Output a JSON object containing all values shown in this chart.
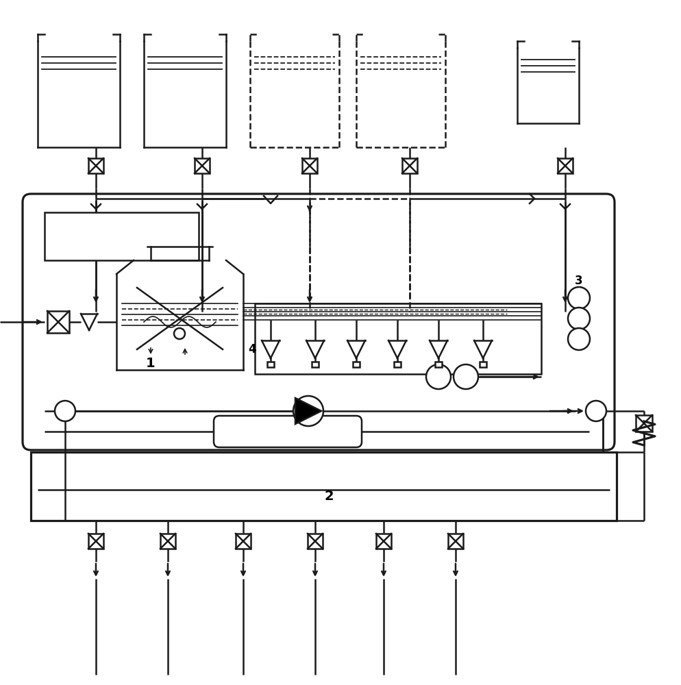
{
  "bg_color": "#ffffff",
  "line_color": "#1a1a1a",
  "label_1": "1",
  "label_2": "2",
  "label_3": "3",
  "label_4": "4",
  "figsize": [
    9.94,
    10.0
  ],
  "dpi": 100,
  "lw": 1.8
}
